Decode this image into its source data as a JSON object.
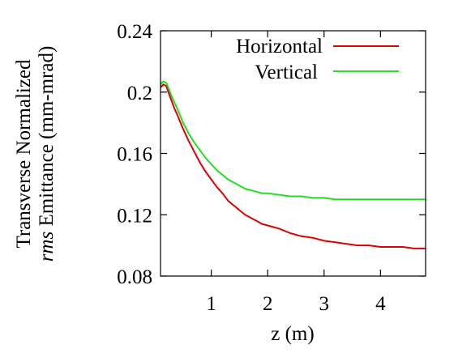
{
  "chart_data": {
    "type": "line",
    "title": "",
    "xlabel": "z (m)",
    "ylabel_line1": "Transverse Normalized",
    "ylabel_line2_italic": "rms",
    "ylabel_line2_rest": " Emittance (mm-mrad)",
    "xlim": [
      0.1,
      4.8
    ],
    "ylim": [
      0.08,
      0.24
    ],
    "x_ticks": [
      1,
      2,
      3,
      4
    ],
    "x_tick_labels": [
      "1",
      "2",
      "3",
      "4"
    ],
    "y_ticks": [
      0.08,
      0.12,
      0.16,
      0.2,
      0.24
    ],
    "y_tick_labels": [
      "0.08",
      "0.12",
      "0.16",
      "0.2",
      "0.24"
    ],
    "grid": false,
    "legend_position": "top-right",
    "series": [
      {
        "name": "Horizontal",
        "color": "#dd0000",
        "x": [
          0.1,
          0.15,
          0.2,
          0.25,
          0.3,
          0.35,
          0.4,
          0.5,
          0.6,
          0.7,
          0.8,
          0.9,
          1.0,
          1.1,
          1.2,
          1.3,
          1.4,
          1.5,
          1.6,
          1.7,
          1.8,
          1.9,
          2.0,
          2.2,
          2.4,
          2.6,
          2.8,
          3.0,
          3.2,
          3.4,
          3.6,
          3.8,
          4.0,
          4.2,
          4.4,
          4.6,
          4.8
        ],
        "y": [
          0.203,
          0.205,
          0.204,
          0.199,
          0.194,
          0.189,
          0.185,
          0.176,
          0.168,
          0.161,
          0.154,
          0.148,
          0.143,
          0.138,
          0.134,
          0.129,
          0.126,
          0.123,
          0.12,
          0.118,
          0.116,
          0.114,
          0.113,
          0.111,
          0.108,
          0.106,
          0.105,
          0.103,
          0.102,
          0.101,
          0.1,
          0.1,
          0.099,
          0.099,
          0.099,
          0.098,
          0.098
        ]
      },
      {
        "name": "Vertical",
        "color": "#22dd22",
        "x": [
          0.1,
          0.15,
          0.2,
          0.25,
          0.3,
          0.35,
          0.4,
          0.5,
          0.6,
          0.7,
          0.8,
          0.9,
          1.0,
          1.1,
          1.2,
          1.3,
          1.4,
          1.5,
          1.6,
          1.7,
          1.8,
          1.9,
          2.0,
          2.2,
          2.4,
          2.6,
          2.8,
          3.0,
          3.2,
          3.4,
          3.6,
          3.8,
          4.0,
          4.2,
          4.4,
          4.6,
          4.8
        ],
        "y": [
          0.205,
          0.207,
          0.206,
          0.202,
          0.197,
          0.193,
          0.189,
          0.18,
          0.173,
          0.167,
          0.162,
          0.157,
          0.153,
          0.149,
          0.146,
          0.143,
          0.141,
          0.139,
          0.137,
          0.136,
          0.135,
          0.134,
          0.134,
          0.133,
          0.132,
          0.132,
          0.131,
          0.131,
          0.13,
          0.13,
          0.13,
          0.13,
          0.13,
          0.13,
          0.13,
          0.13,
          0.13
        ]
      }
    ]
  }
}
